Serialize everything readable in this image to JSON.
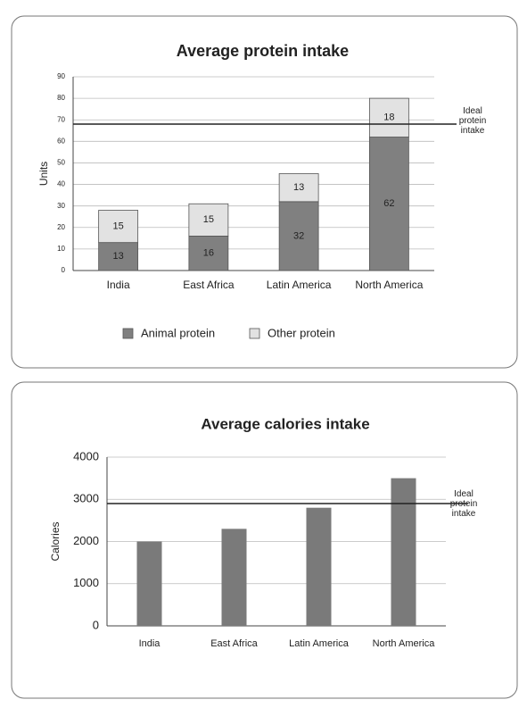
{
  "chart_data": [
    {
      "type": "stacked_bar",
      "title": "Average protein intake",
      "y_label": "Units",
      "categories": [
        "India",
        "East Africa",
        "Latin America",
        "North America"
      ],
      "series": [
        {
          "name": "Animal protein",
          "color": "#808080",
          "values": [
            13,
            16,
            32,
            62
          ]
        },
        {
          "name": "Other protein",
          "color": "#e2e2e2",
          "values": [
            15,
            15,
            13,
            18
          ]
        }
      ],
      "ylim": [
        0,
        90
      ],
      "yticks": [
        0,
        10,
        20,
        30,
        40,
        50,
        60,
        70,
        80,
        90
      ],
      "grid": true,
      "reference_line": {
        "value": 68,
        "label": "Ideal protein intake"
      },
      "legend": "bottom"
    },
    {
      "type": "bar",
      "title": "Average calories intake",
      "y_label": "Calories",
      "categories": [
        "India",
        "East Africa",
        "Latin America",
        "North America"
      ],
      "values": [
        2000,
        2300,
        2800,
        3500
      ],
      "color": "#7a7a7a",
      "ylim": [
        0,
        4000
      ],
      "yticks": [
        0,
        1000,
        2000,
        3000,
        4000
      ],
      "grid": true,
      "reference_line": {
        "value": 2900,
        "label": "Ideal protein intake"
      }
    }
  ]
}
